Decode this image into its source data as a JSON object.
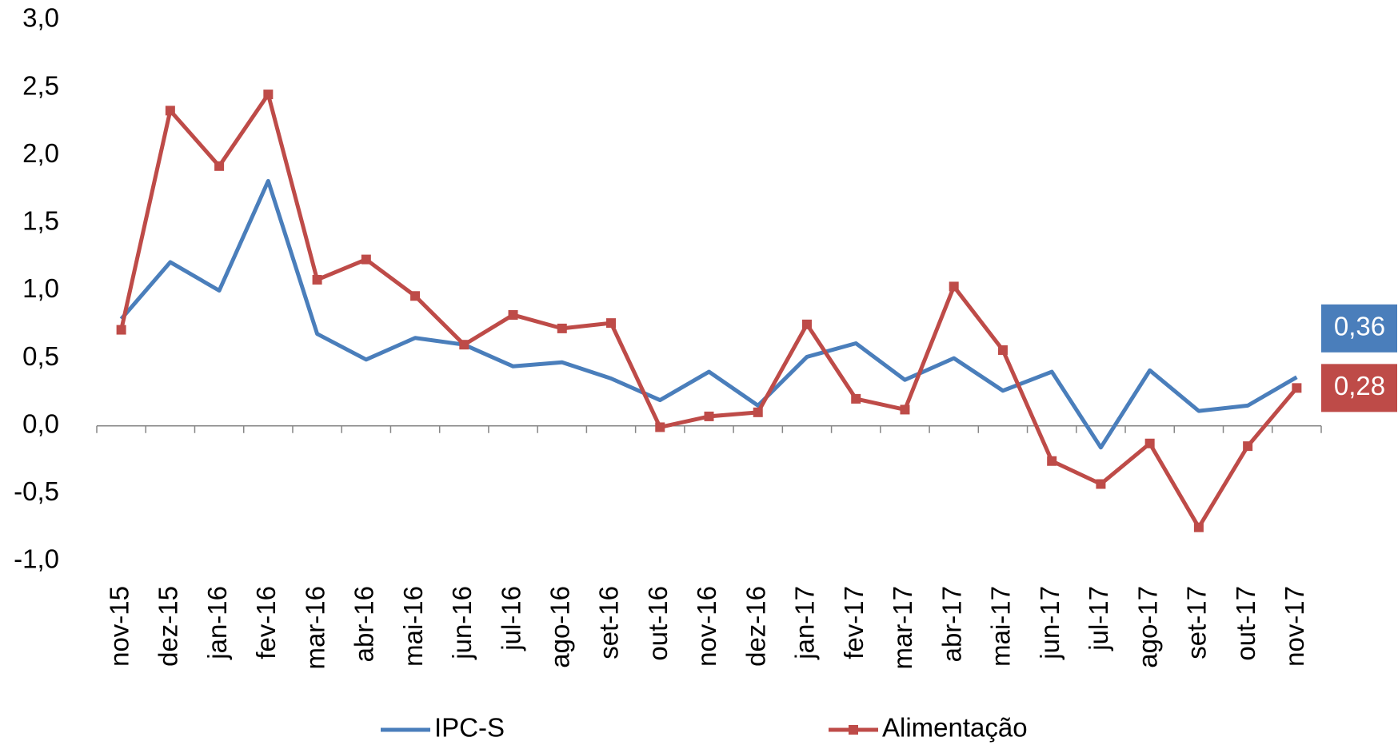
{
  "chart_data": {
    "type": "line",
    "categories": [
      "nov-15",
      "dez-15",
      "jan-16",
      "fev-16",
      "mar-16",
      "abr-16",
      "mai-16",
      "jun-16",
      "jul-16",
      "ago-16",
      "set-16",
      "out-16",
      "nov-16",
      "dez-16",
      "jan-17",
      "fev-17",
      "mar-17",
      "abr-17",
      "mai-17",
      "jun-17",
      "jul-17",
      "ago-17",
      "set-17",
      "out-17",
      "nov-17"
    ],
    "series": [
      {
        "name": "IPC-S",
        "color": "#4a7ebb",
        "marker": "none",
        "values": [
          0.79,
          1.21,
          1.0,
          1.81,
          0.68,
          0.49,
          0.65,
          0.6,
          0.44,
          0.47,
          0.35,
          0.19,
          0.4,
          0.15,
          0.51,
          0.61,
          0.34,
          0.5,
          0.26,
          0.4,
          -0.16,
          0.41,
          0.11,
          0.15,
          0.36
        ],
        "value_labels": [
          null,
          null,
          null,
          null,
          null,
          null,
          null,
          null,
          null,
          null,
          null,
          null,
          null,
          null,
          null,
          null,
          null,
          null,
          null,
          null,
          null,
          null,
          null,
          null,
          "0,36"
        ]
      },
      {
        "name": "Alimentação",
        "color": "#be4b48",
        "marker": "square",
        "values": [
          0.71,
          2.33,
          1.92,
          2.45,
          1.08,
          1.23,
          0.96,
          0.6,
          0.82,
          0.72,
          0.76,
          -0.01,
          0.07,
          0.1,
          0.75,
          0.2,
          0.12,
          1.03,
          0.56,
          -0.26,
          -0.43,
          -0.13,
          -0.75,
          -0.15,
          0.28
        ],
        "value_labels": [
          null,
          null,
          null,
          null,
          null,
          null,
          null,
          null,
          null,
          null,
          null,
          null,
          null,
          null,
          null,
          null,
          null,
          null,
          null,
          null,
          null,
          null,
          null,
          null,
          "0,28"
        ]
      }
    ],
    "ylim": [
      -1,
      3
    ],
    "yticks": [
      {
        "value": -1,
        "label": "-1,0"
      },
      {
        "value": -0.5,
        "label": "-0,5"
      },
      {
        "value": 0,
        "label": "0,0"
      },
      {
        "value": 0.5,
        "label": "0,5"
      },
      {
        "value": 1,
        "label": "1,0"
      },
      {
        "value": 1.5,
        "label": "1,5"
      },
      {
        "value": 2,
        "label": "2,0"
      },
      {
        "value": 2.5,
        "label": "2,5"
      },
      {
        "value": 3,
        "label": "3,0"
      }
    ],
    "grid": false,
    "legend": "bottom"
  }
}
